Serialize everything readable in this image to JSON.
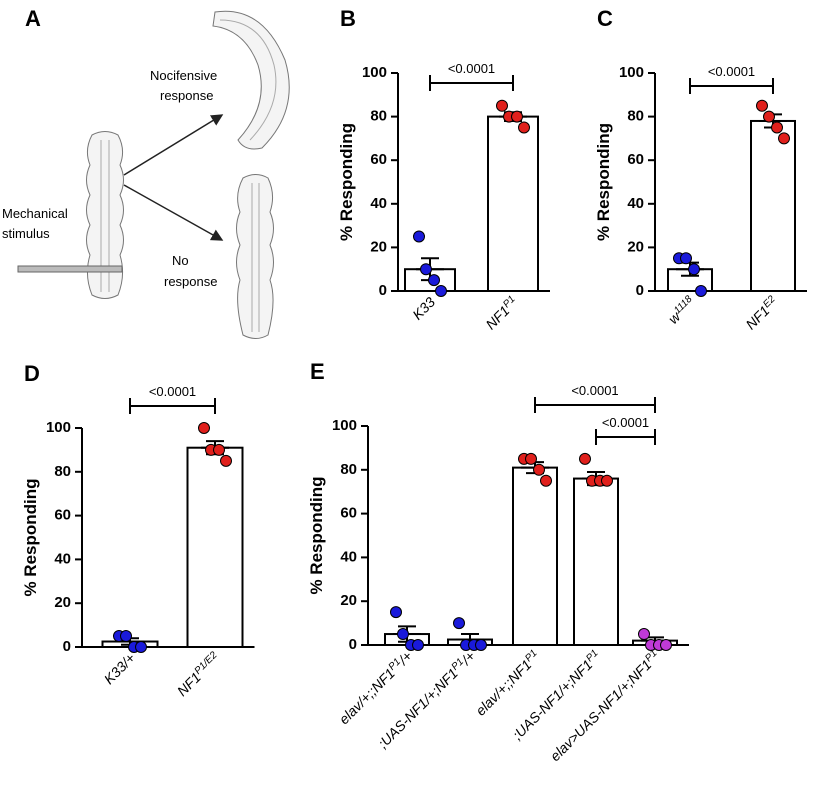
{
  "diagram": {
    "label": "A",
    "texts": [
      [
        "Nocifensive",
        "response"
      ],
      [
        "Mechanical",
        "stimulus"
      ],
      [
        "No",
        "response"
      ]
    ]
  },
  "chart_data": [
    {
      "type": "bar",
      "label": "B",
      "ylabel": "% Responding",
      "ylim": [
        0,
        100
      ],
      "yticks": [
        0,
        20,
        40,
        60,
        80,
        100
      ],
      "categories": [
        [
          {
            "text": "K33"
          }
        ],
        [
          {
            "text": "NF1"
          },
          {
            "sup": "P1"
          }
        ]
      ],
      "values": [
        10,
        80
      ],
      "errors": [
        5,
        2
      ],
      "points": [
        [
          25,
          10,
          5,
          0
        ],
        [
          85,
          80,
          80,
          75
        ]
      ],
      "point_colors": [
        "#1a1adb",
        "#e0201c"
      ],
      "comparisons": [
        {
          "from": 0,
          "to": 1,
          "label": "<0.0001"
        }
      ]
    },
    {
      "type": "bar",
      "label": "C",
      "ylabel": "% Responding",
      "ylim": [
        0,
        100
      ],
      "yticks": [
        0,
        20,
        40,
        60,
        80,
        100
      ],
      "categories": [
        [
          {
            "text": "w"
          },
          {
            "sup": "1118"
          }
        ],
        [
          {
            "text": "NF1"
          },
          {
            "sup": "E2"
          }
        ]
      ],
      "values": [
        10,
        78
      ],
      "errors": [
        3,
        3
      ],
      "points": [
        [
          15,
          15,
          10,
          0
        ],
        [
          85,
          80,
          75,
          70
        ]
      ],
      "point_colors": [
        "#1a1adb",
        "#e0201c"
      ],
      "comparisons": [
        {
          "from": 0,
          "to": 1,
          "label": "<0.0001"
        }
      ]
    },
    {
      "type": "bar",
      "label": "D",
      "ylabel": "% Responding",
      "ylim": [
        0,
        100
      ],
      "yticks": [
        0,
        20,
        40,
        60,
        80,
        100
      ],
      "categories": [
        [
          {
            "text": "K33/+"
          }
        ],
        [
          {
            "text": "NF1"
          },
          {
            "sup": "P1/E2"
          }
        ]
      ],
      "values": [
        2.5,
        91
      ],
      "errors": [
        1.5,
        3
      ],
      "points": [
        [
          5,
          5,
          0,
          0
        ],
        [
          100,
          90,
          90,
          85
        ]
      ],
      "point_colors": [
        "#1a1adb",
        "#e0201c"
      ],
      "comparisons": [
        {
          "from": 0,
          "to": 1,
          "label": "<0.0001"
        }
      ]
    },
    {
      "type": "bar",
      "label": "E",
      "ylabel": "% Responding",
      "ylim": [
        0,
        100
      ],
      "yticks": [
        0,
        20,
        40,
        60,
        80,
        100
      ],
      "categories": [
        [
          {
            "text": "elav/+;;NF1"
          },
          {
            "sup": "P1"
          },
          {
            "text": "/+"
          }
        ],
        [
          {
            "text": ";UAS-NF1/+;NF1"
          },
          {
            "sup": "P1"
          },
          {
            "text": "/+"
          }
        ],
        [
          {
            "text": "elav/+;;NF1"
          },
          {
            "sup": "P1"
          }
        ],
        [
          {
            "text": ";UAS-NF1/+;NF1"
          },
          {
            "sup": "P1"
          }
        ],
        [
          {
            "text": "elav>UAS-NF1/+;NF1"
          },
          {
            "sup": "P1"
          }
        ]
      ],
      "values": [
        5,
        2.5,
        81,
        76,
        2
      ],
      "errors": [
        3.5,
        2.5,
        2.5,
        3,
        1.5
      ],
      "points": [
        [
          15,
          5,
          0,
          0
        ],
        [
          10,
          0,
          0,
          0
        ],
        [
          85,
          85,
          80,
          75
        ],
        [
          85,
          75,
          75,
          75
        ],
        [
          5,
          0,
          0,
          0
        ]
      ],
      "point_colors": [
        "#1a1adb",
        "#1a1adb",
        "#e0201c",
        "#e0201c",
        "#c03ad8"
      ],
      "comparisons": [
        {
          "from": 2,
          "to": 4,
          "label": "<0.0001"
        },
        {
          "from": 3,
          "to": 4,
          "label": "<0.0001"
        }
      ]
    }
  ]
}
